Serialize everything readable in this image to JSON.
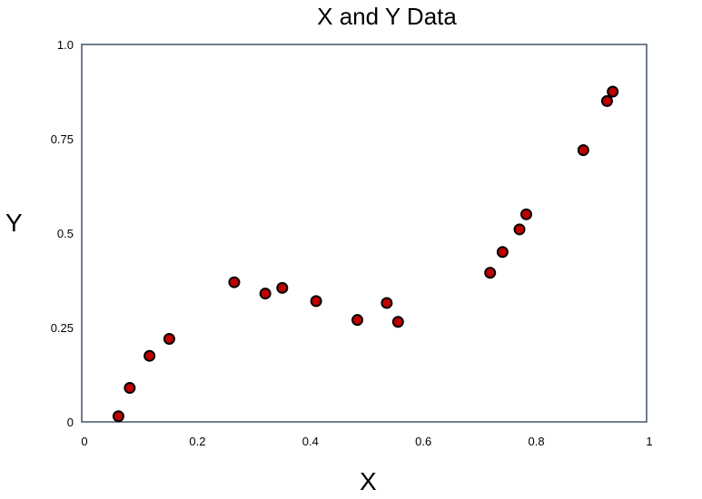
{
  "chart_data": {
    "type": "scatter",
    "title": "X and Y Data",
    "xlabel": "X",
    "ylabel": "Y",
    "xlim": [
      0,
      1
    ],
    "ylim": [
      0,
      1
    ],
    "x_ticks": [
      {
        "value": 0,
        "label": "0"
      },
      {
        "value": 0.2,
        "label": "0.2"
      },
      {
        "value": 0.4,
        "label": "0.4"
      },
      {
        "value": 0.6,
        "label": "0.6"
      },
      {
        "value": 0.8,
        "label": "0.8"
      },
      {
        "value": 1,
        "label": "1"
      }
    ],
    "y_ticks": [
      {
        "value": 0,
        "label": "0"
      },
      {
        "value": 0.25,
        "label": "0.25"
      },
      {
        "value": 0.5,
        "label": "0.5"
      },
      {
        "value": 0.75,
        "label": "0.75"
      },
      {
        "value": 1.0,
        "label": "1.0"
      }
    ],
    "grid": false,
    "legend": false,
    "marker_color": "#c00000",
    "marker_edge_color": "#000000",
    "axes_color": "#44546a",
    "series": [
      {
        "x": [
          0.065,
          0.085,
          0.12,
          0.155,
          0.27,
          0.325,
          0.355,
          0.415,
          0.488,
          0.54,
          0.56,
          0.723,
          0.745,
          0.775,
          0.787,
          0.888,
          0.93,
          0.94
        ],
        "y": [
          0.015,
          0.09,
          0.175,
          0.22,
          0.37,
          0.34,
          0.355,
          0.32,
          0.27,
          0.315,
          0.265,
          0.395,
          0.45,
          0.51,
          0.55,
          0.72,
          0.85,
          0.875
        ]
      }
    ]
  }
}
